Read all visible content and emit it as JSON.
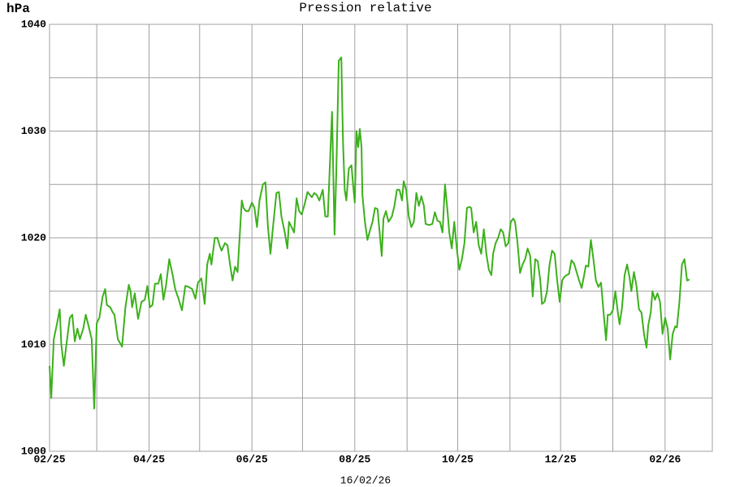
{
  "chart_data": {
    "type": "line",
    "title": "Pression relative",
    "ylabel": "hPa",
    "subtitle": "16/02/26",
    "color": "#3cb01c",
    "grid_color": "#a0a0a0",
    "grid": true,
    "xlim": [
      0,
      393
    ],
    "ylim": [
      1000,
      1040
    ],
    "yticks": [
      1000,
      1010,
      1020,
      1030,
      1040
    ],
    "y_minor_grid": [
      1005,
      1015,
      1025,
      1035
    ],
    "xticks": [
      {
        "value": 0,
        "label": "02/25"
      },
      {
        "value": 59,
        "label": "04/25"
      },
      {
        "value": 120,
        "label": "06/25"
      },
      {
        "value": 181,
        "label": "08/25"
      },
      {
        "value": 242,
        "label": "10/25"
      },
      {
        "value": 303,
        "label": "12/25"
      },
      {
        "value": 365,
        "label": "02/26"
      }
    ],
    "x_minor_grid": [
      28,
      89,
      150,
      212,
      273,
      334
    ],
    "x": [
      0,
      1,
      2.5,
      4.5,
      6,
      7,
      8.5,
      10,
      12,
      13.5,
      15,
      16.5,
      18,
      20,
      21.5,
      23.5,
      25,
      26.5,
      28,
      29.5,
      31.5,
      33,
      34,
      36,
      37.5,
      38.5,
      40.5,
      43,
      45,
      47,
      48,
      49,
      50.5,
      52.5,
      54.5,
      56.5,
      58,
      59.5,
      61,
      62.5,
      64.5,
      66,
      67.5,
      69,
      71,
      73,
      74.5,
      76.5,
      78.5,
      80.5,
      82.5,
      84.5,
      86.5,
      88,
      90,
      92,
      93.5,
      95,
      96,
      98,
      99.5,
      101,
      102,
      104,
      105.5,
      107,
      108.5,
      110,
      111.5,
      114,
      115,
      116.5,
      118,
      120,
      121.5,
      123,
      124.5,
      126.5,
      128,
      129.5,
      131,
      132.5,
      134.5,
      136,
      137.5,
      139.5,
      141,
      142,
      143.5,
      145,
      146.5,
      148,
      149.5,
      151,
      153,
      154.5,
      155.5,
      157,
      158.5,
      160,
      162,
      163.5,
      165,
      166,
      167.5,
      168.5,
      169,
      170,
      171.5,
      173,
      174,
      175,
      176,
      177.5,
      179,
      180,
      181,
      182,
      183,
      184,
      185,
      185.5,
      187,
      188.5,
      190,
      191.5,
      193,
      194.5,
      196,
      197,
      198,
      199.5,
      201,
      203,
      204.5,
      206,
      207.5,
      209,
      210,
      211.5,
      213,
      214.5,
      216,
      217.5,
      219,
      220.5,
      222,
      223,
      225,
      227,
      228.5,
      230,
      231.5,
      233,
      234.5,
      236,
      237,
      238.5,
      240,
      241.5,
      243,
      244.5,
      246,
      247.5,
      249,
      250,
      251.5,
      253,
      254.5,
      256,
      257.5,
      259,
      260.5,
      262,
      263,
      264.5,
      266,
      267.5,
      269,
      270.5,
      272,
      273.5,
      275,
      276,
      277.5,
      279,
      280.5,
      282,
      283.5,
      285,
      286.5,
      288,
      289.5,
      291,
      292,
      293.5,
      295,
      296.5,
      298,
      299.5,
      301,
      302.5,
      304,
      305,
      306.5,
      308,
      309.5,
      311,
      312.5,
      314,
      315.5,
      317,
      318,
      319.5,
      321,
      322.5,
      324,
      325.5,
      327,
      328.5,
      330,
      331,
      332.5,
      334,
      335.5,
      337,
      338,
      339.5,
      341,
      342.5,
      344,
      345,
      346.5,
      348,
      349.5,
      351,
      352.5,
      354,
      355,
      356.5,
      357.5,
      359,
      360.5,
      362,
      363.5,
      365,
      366.5,
      368,
      369.5,
      371,
      372,
      373.5,
      375,
      376.5,
      378,
      379.5
    ],
    "values": [
      1008,
      1005,
      1010.5,
      1012,
      1013.3,
      1010,
      1008,
      1010,
      1012.5,
      1012.8,
      1010.3,
      1011.5,
      1010.5,
      1011.5,
      1012.8,
      1011.5,
      1010.5,
      1004,
      1012,
      1012.5,
      1014.5,
      1015.2,
      1013.7,
      1013.5,
      1013,
      1012.8,
      1010.5,
      1009.8,
      1013.5,
      1015.6,
      1015,
      1013.5,
      1014.8,
      1012.4,
      1014,
      1014.2,
      1015.5,
      1013.5,
      1013.7,
      1015.7,
      1015.7,
      1016.6,
      1014.2,
      1015.5,
      1018,
      1016.5,
      1015.2,
      1014.3,
      1013.2,
      1015.5,
      1015.4,
      1015.2,
      1014.3,
      1015.8,
      1016.2,
      1013.8,
      1017.5,
      1018.5,
      1017.5,
      1020,
      1020,
      1019.2,
      1018.8,
      1019.5,
      1019.3,
      1017.5,
      1016,
      1017.3,
      1016.8,
      1023.5,
      1022.8,
      1022.5,
      1022.5,
      1023.3,
      1022.8,
      1021,
      1023.5,
      1025,
      1025.2,
      1021,
      1018.5,
      1021,
      1024.2,
      1024.3,
      1022,
      1020.5,
      1019,
      1021.5,
      1021,
      1020.5,
      1023.7,
      1022.5,
      1022.2,
      1023,
      1024.3,
      1024,
      1023.8,
      1024.2,
      1024,
      1023.5,
      1024.5,
      1022,
      1022,
      1026,
      1031.8,
      1024,
      1020.3,
      1026,
      1036.6,
      1036.9,
      1029,
      1024.5,
      1023.5,
      1026.5,
      1026.8,
      1025,
      1023.3,
      1030,
      1028.5,
      1030.2,
      1028.5,
      1024,
      1021.5,
      1019.8,
      1020.7,
      1021.5,
      1022.8,
      1022.7,
      1020,
      1018.3,
      1021.8,
      1022.5,
      1021.5,
      1022,
      1023,
      1024.5,
      1024.5,
      1023.5,
      1025.3,
      1024.5,
      1022,
      1021,
      1021.5,
      1024.2,
      1023,
      1023.9,
      1023,
      1021.3,
      1021.2,
      1021.3,
      1022.4,
      1021.6,
      1021.5,
      1020.5,
      1025,
      1022.5,
      1020.5,
      1019,
      1021.5,
      1019,
      1017,
      1018,
      1019.5,
      1022.8,
      1022.9,
      1022.8,
      1020.5,
      1021.5,
      1019.3,
      1018.5,
      1020.8,
      1018.5,
      1017,
      1016.5,
      1018.5,
      1019.5,
      1020,
      1020.8,
      1020.5,
      1019.2,
      1019.5,
      1021.5,
      1021.8,
      1021.5,
      1019.5,
      1016.7,
      1017.5,
      1018,
      1019,
      1018.3,
      1014.5,
      1018,
      1017.8,
      1016,
      1013.8,
      1014,
      1015,
      1017.5,
      1018.8,
      1018.5,
      1016,
      1014,
      1016,
      1016.3,
      1016.5,
      1016.6,
      1017.9,
      1017.6,
      1016.8,
      1016,
      1015.3,
      1016.5,
      1017.4,
      1017.3,
      1019.8,
      1018,
      1016,
      1015.4,
      1015.8,
      1013,
      1010.4,
      1012.8,
      1012.8,
      1013.2,
      1015,
      1013,
      1011.9,
      1013.5,
      1016.5,
      1017.5,
      1016.2,
      1015,
      1016.8,
      1015.5,
      1013.3,
      1013,
      1011,
      1009.7,
      1011.8,
      1013,
      1015,
      1014.2,
      1014.8,
      1014,
      1011,
      1012.5,
      1011.5,
      1008.6,
      1011,
      1011.7,
      1011.6,
      1014,
      1017.5,
      1018,
      1016,
      1016.1
    ]
  }
}
